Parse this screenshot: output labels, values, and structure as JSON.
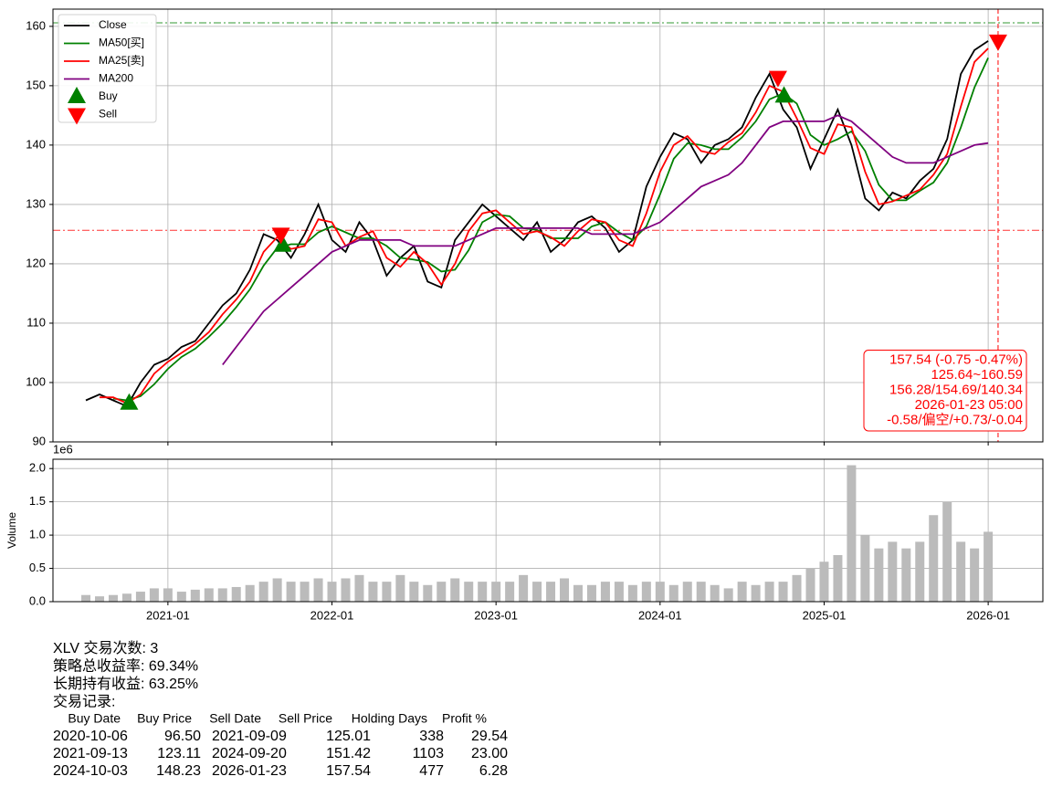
{
  "chart_data": [
    {
      "type": "line",
      "x": [
        "2020-07",
        "2020-08",
        "2020-09",
        "2020-10",
        "2020-11",
        "2020-12",
        "2021-01",
        "2021-02",
        "2021-03",
        "2021-04",
        "2021-05",
        "2021-06",
        "2021-07",
        "2021-08",
        "2021-09",
        "2021-10",
        "2021-11",
        "2021-12",
        "2022-01",
        "2022-02",
        "2022-03",
        "2022-04",
        "2022-05",
        "2022-06",
        "2022-07",
        "2022-08",
        "2022-09",
        "2022-10",
        "2022-11",
        "2022-12",
        "2023-01",
        "2023-02",
        "2023-03",
        "2023-04",
        "2023-05",
        "2023-06",
        "2023-07",
        "2023-08",
        "2023-09",
        "2023-10",
        "2023-11",
        "2023-12",
        "2024-01",
        "2024-02",
        "2024-03",
        "2024-04",
        "2024-05",
        "2024-06",
        "2024-07",
        "2024-08",
        "2024-09",
        "2024-10",
        "2024-11",
        "2024-12",
        "2025-01",
        "2025-02",
        "2025-03",
        "2025-04",
        "2025-05",
        "2025-06",
        "2025-07",
        "2025-08",
        "2025-09",
        "2025-10",
        "2025-11",
        "2025-12",
        "2026-01"
      ],
      "xlim": [
        "2020-04-19",
        "2026-05-01"
      ],
      "xticks": [
        "2021-01",
        "2022-01",
        "2023-01",
        "2024-01",
        "2025-01",
        "2026-01"
      ],
      "ylim": [
        90,
        162.9
      ],
      "yticks": [
        90,
        100,
        110,
        120,
        130,
        140,
        150,
        160
      ],
      "grid": true,
      "legend": "upper left",
      "series": [
        {
          "name": "Close",
          "color": "#000000",
          "values": [
            97,
            98,
            97,
            96,
            100,
            103,
            104,
            106,
            107,
            110,
            113,
            115,
            119,
            125,
            124,
            121,
            125,
            130,
            124,
            122,
            127,
            124,
            118,
            121,
            123,
            117,
            116,
            124,
            127,
            130,
            128,
            126,
            124,
            127,
            122,
            124,
            127,
            128,
            126,
            122,
            124,
            133,
            138,
            142,
            141,
            137,
            140,
            141,
            143,
            148,
            152,
            146,
            143,
            136,
            141,
            146,
            140,
            131,
            129,
            132,
            131,
            134,
            136,
            141,
            152,
            156,
            157.54
          ]
        },
        {
          "name": "MA50[买]",
          "color": "#008000",
          "values": [
            null,
            null,
            97.3,
            97,
            97.7,
            99.7,
            102.3,
            104.3,
            105.7,
            107.7,
            110,
            112.7,
            115.7,
            119.7,
            122.7,
            123.3,
            123.3,
            125.3,
            126.3,
            125.3,
            124.3,
            124.3,
            123,
            121,
            120.7,
            120.3,
            118.7,
            119,
            122.3,
            127,
            128.3,
            128,
            126,
            125.7,
            124.3,
            124.3,
            124.3,
            126.3,
            127,
            125.3,
            124,
            126.3,
            131.7,
            137.7,
            140.3,
            140,
            139.3,
            139.3,
            141.3,
            144,
            147.7,
            148.7,
            147,
            141.7,
            140,
            141,
            142.3,
            139,
            133.3,
            130.7,
            130.7,
            132.3,
            133.7,
            137,
            143,
            149.7,
            154.69
          ]
        },
        {
          "name": "MA25[卖]",
          "color": "#ff0000",
          "values": [
            null,
            97.5,
            97.5,
            96.5,
            98,
            101.5,
            103.5,
            105,
            106.5,
            108.5,
            111.5,
            114,
            117,
            122,
            124.5,
            122.5,
            123,
            127.5,
            127,
            123,
            124.5,
            125.5,
            121,
            119.5,
            122,
            120,
            116.5,
            120,
            125.5,
            128.5,
            129,
            127,
            125,
            125.5,
            124.5,
            123,
            125.5,
            127.5,
            127,
            124,
            123,
            128.5,
            135.5,
            140,
            141.5,
            139,
            138.5,
            140.5,
            142,
            145.5,
            150,
            149,
            144.5,
            139.5,
            138.5,
            143.5,
            143,
            135.5,
            130,
            130.5,
            131.5,
            132.5,
            135,
            138.5,
            146.5,
            154,
            156.28
          ]
        },
        {
          "name": "MA200",
          "color": "#800080",
          "values": [
            null,
            null,
            null,
            null,
            null,
            null,
            null,
            null,
            null,
            null,
            103,
            106,
            109,
            112,
            114,
            116,
            118,
            120,
            122,
            123,
            124,
            124,
            124,
            124,
            123,
            123,
            123,
            123,
            124,
            125,
            126,
            126,
            126,
            126,
            126,
            126,
            126,
            125,
            125,
            125,
            125,
            126,
            127,
            129,
            131,
            133,
            134,
            135,
            137,
            140,
            143,
            144,
            144,
            144,
            144,
            145,
            144,
            142,
            140,
            138,
            137,
            137,
            137,
            138,
            139,
            140,
            140.34
          ]
        }
      ],
      "markers": [
        {
          "name": "Buy",
          "shape": "up",
          "color": "#008000",
          "x": [
            "2020-10-06",
            "2021-09-13",
            "2024-10-03"
          ],
          "values": [
            96.5,
            123.11,
            148.23
          ]
        },
        {
          "name": "Sell",
          "shape": "down",
          "color": "#ff0000",
          "x": [
            "2021-09-09",
            "2024-09-20",
            "2026-01-23"
          ],
          "values": [
            125.01,
            151.42,
            157.54
          ]
        }
      ],
      "hlines": [
        {
          "value": 125.64,
          "color": "#ff0000"
        },
        {
          "value": 160.59,
          "color": "#008000"
        }
      ],
      "vline": {
        "x": "2026-01-23",
        "color": "#ff0000"
      },
      "annotation": [
        "157.54 (-0.75 -0.47%)",
        "125.64~160.59",
        "156.28/154.69/140.34",
        "2026-01-23 05:00",
        "-0.58/偏空/+0.73/-0.04"
      ]
    },
    {
      "type": "bar",
      "x": [
        "2020-07",
        "2020-08",
        "2020-09",
        "2020-10",
        "2020-11",
        "2020-12",
        "2021-01",
        "2021-02",
        "2021-03",
        "2021-04",
        "2021-05",
        "2021-06",
        "2021-07",
        "2021-08",
        "2021-09",
        "2021-10",
        "2021-11",
        "2021-12",
        "2022-01",
        "2022-02",
        "2022-03",
        "2022-04",
        "2022-05",
        "2022-06",
        "2022-07",
        "2022-08",
        "2022-09",
        "2022-10",
        "2022-11",
        "2022-12",
        "2023-01",
        "2023-02",
        "2023-03",
        "2023-04",
        "2023-05",
        "2023-06",
        "2023-07",
        "2023-08",
        "2023-09",
        "2023-10",
        "2023-11",
        "2023-12",
        "2024-01",
        "2024-02",
        "2024-03",
        "2024-04",
        "2024-05",
        "2024-06",
        "2024-07",
        "2024-08",
        "2024-09",
        "2024-10",
        "2024-11",
        "2024-12",
        "2025-01",
        "2025-02",
        "2025-03",
        "2025-04",
        "2025-05",
        "2025-06",
        "2025-07",
        "2025-08",
        "2025-09",
        "2025-10",
        "2025-11",
        "2025-12",
        "2026-01"
      ],
      "xlim": [
        "2020-04-19",
        "2026-05-01"
      ],
      "xticks": [
        "2021-01",
        "2022-01",
        "2023-01",
        "2024-01",
        "2025-01",
        "2026-01"
      ],
      "ylim": [
        0,
        2.14
      ],
      "yticks": [
        {
          "value": 0,
          "label": "0.0"
        },
        0.5,
        {
          "value": 1,
          "label": "1.0"
        },
        1.5,
        {
          "value": 2,
          "label": "2.0"
        }
      ],
      "ylabel": "Volume",
      "offset_label": "1e6",
      "grid": true,
      "color": "#bbbbbb",
      "values": [
        0.1,
        0.08,
        0.1,
        0.12,
        0.15,
        0.2,
        0.2,
        0.15,
        0.18,
        0.2,
        0.2,
        0.22,
        0.25,
        0.3,
        0.35,
        0.3,
        0.3,
        0.35,
        0.3,
        0.35,
        0.4,
        0.3,
        0.3,
        0.4,
        0.3,
        0.25,
        0.3,
        0.35,
        0.3,
        0.3,
        0.3,
        0.3,
        0.4,
        0.3,
        0.3,
        0.35,
        0.25,
        0.25,
        0.3,
        0.3,
        0.25,
        0.3,
        0.3,
        0.25,
        0.3,
        0.3,
        0.25,
        0.2,
        0.3,
        0.25,
        0.3,
        0.3,
        0.4,
        0.5,
        0.6,
        0.7,
        2.05,
        1.0,
        0.8,
        0.9,
        0.8,
        0.9,
        1.3,
        1.5,
        0.9,
        0.8,
        1.05
      ]
    }
  ],
  "summary": {
    "lines": [
      "XLV 交易次数: 3",
      "策略总收益率: 69.34%",
      "长期持有收益: 63.25%",
      "交易记录:"
    ],
    "columns": [
      "Buy Date",
      "Buy Price",
      "Sell Date",
      "Sell Price",
      "Holding Days",
      "Profit %"
    ],
    "rows": [
      [
        "2020-10-06",
        "96.50",
        "2021-09-09",
        "125.01",
        "338",
        "29.54"
      ],
      [
        "2021-09-13",
        "123.11",
        "2024-09-20",
        "151.42",
        "1103",
        "23.00"
      ],
      [
        "2024-10-03",
        "148.23",
        "2026-01-23",
        "157.54",
        "477",
        "6.28"
      ]
    ]
  }
}
